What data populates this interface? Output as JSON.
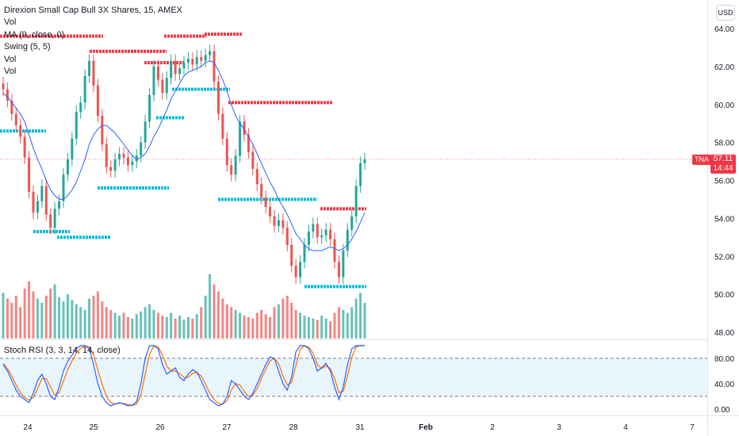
{
  "legend": {
    "title": "Direxion Small Cap Bull 3X Shares, 15, AMEX",
    "lines": [
      "Vol",
      "MA (9, close, 0)",
      "Swing (5, 5)",
      "Vol",
      "Vol"
    ]
  },
  "stoch_label": "Stoch RSI (3, 3, 14, 14, close)",
  "currency_button": "USD",
  "last_price": {
    "symbol": "TNA",
    "value": "57.11",
    "countdown": "14:44"
  },
  "colors": {
    "up": "#26a69a",
    "down": "#ef5350",
    "ma": "#2962ff",
    "swing_high": "#f23645",
    "swing_low": "#00bcd4",
    "stoch_k": "#2962ff",
    "stoch_d": "#ff6d00",
    "stoch_band": "#e3f2fd"
  },
  "chart_data": {
    "type": "candlestick",
    "title": "Direxion Small Cap Bull 3X Shares, 15, AMEX",
    "y_axis": {
      "range": [
        47.5,
        65.0
      ],
      "ticks": [
        "64.00",
        "62.00",
        "60.00",
        "58.00",
        "56.00",
        "54.00",
        "52.00",
        "50.00",
        "48.00"
      ]
    },
    "x_axis": {
      "ticks": [
        "24",
        "25",
        "26",
        "27",
        "28",
        "31",
        "Feb",
        "2",
        "3",
        "4",
        "7"
      ]
    },
    "price_close": [
      60.8,
      60.2,
      59.5,
      58.9,
      58.3,
      57.2,
      55.4,
      54.3,
      54.9,
      55.7,
      54.2,
      53.5,
      54.5,
      54.9,
      56.3,
      57.1,
      58.2,
      59.6,
      60.1,
      61.5,
      62.3,
      61.0,
      59.4,
      57.9,
      56.7,
      56.5,
      57.1,
      57.4,
      57.2,
      56.8,
      57.0,
      57.3,
      58.0,
      59.1,
      60.5,
      62.0,
      61.3,
      60.6,
      61.4,
      62.3,
      61.6,
      61.9,
      62.2,
      62.4,
      62.1,
      62.5,
      62.3,
      62.6,
      62.8,
      61.2,
      59.5,
      58.2,
      56.8,
      56.3,
      57.3,
      59.1,
      58.4,
      57.5,
      56.6,
      55.8,
      55.1,
      54.6,
      54.1,
      53.6,
      53.9,
      53.5,
      52.6,
      51.5,
      50.9,
      51.7,
      52.6,
      53.3,
      53.7,
      53.0,
      53.1,
      53.4,
      52.9,
      51.7,
      50.9,
      52.3,
      53.4,
      54.1,
      55.7,
      56.9,
      57.11
    ],
    "volume": [
      32,
      28,
      25,
      30,
      22,
      35,
      40,
      33,
      28,
      25,
      30,
      35,
      38,
      29,
      26,
      31,
      27,
      24,
      22,
      20,
      28,
      30,
      33,
      26,
      22,
      20,
      18,
      16,
      18,
      15,
      14,
      17,
      19,
      22,
      24,
      20,
      18,
      16,
      15,
      18,
      14,
      16,
      13,
      15,
      14,
      17,
      22,
      30,
      45,
      38,
      33,
      28,
      24,
      22,
      20,
      18,
      16,
      15,
      14,
      18,
      20,
      17,
      15,
      22,
      24,
      28,
      30,
      25,
      20,
      18,
      16,
      15,
      14,
      13,
      16,
      14,
      12,
      18,
      22,
      20,
      18,
      22,
      28,
      32,
      25
    ],
    "ma_9": [
      60.6,
      60.4,
      60.1,
      59.8,
      59.5,
      59.1,
      58.4,
      57.7,
      57.1,
      56.6,
      56.0,
      55.5,
      55.2,
      55.0,
      55.0,
      55.2,
      55.5,
      55.9,
      56.5,
      57.1,
      57.9,
      58.4,
      58.7,
      58.9,
      58.9,
      58.7,
      58.5,
      58.2,
      57.9,
      57.6,
      57.3,
      57.1,
      57.2,
      57.4,
      57.8,
      58.3,
      58.7,
      59.2,
      59.7,
      60.3,
      60.7,
      61.1,
      61.5,
      61.7,
      61.8,
      61.9,
      62.0,
      62.2,
      62.3,
      62.2,
      61.8,
      61.3,
      60.7,
      60.0,
      59.4,
      59.0,
      58.7,
      58.3,
      57.9,
      57.4,
      56.9,
      56.4,
      55.9,
      55.5,
      55.0,
      54.6,
      54.2,
      53.7,
      53.2,
      52.9,
      52.6,
      52.4,
      52.3,
      52.3,
      52.3,
      52.4,
      52.5,
      52.4,
      52.3,
      52.4,
      52.6,
      52.9,
      53.3,
      53.8,
      54.3
    ],
    "swing_high_levels": [
      {
        "price": 63.6,
        "from": "24",
        "to": "25"
      },
      {
        "price": 62.8,
        "from": "25",
        "to": "26"
      },
      {
        "price": 62.2,
        "from": "26",
        "to": "26"
      },
      {
        "price": 63.6,
        "from": "26",
        "to": "27"
      },
      {
        "price": 63.7,
        "from": "27",
        "to": "27"
      },
      {
        "price": 60.1,
        "from": "27",
        "to": "28"
      },
      {
        "price": 54.5,
        "from": "28",
        "to": "31"
      }
    ],
    "swing_low_levels": [
      {
        "price": 58.6,
        "from": "24",
        "to": "24"
      },
      {
        "price": 53.3,
        "from": "24",
        "to": "24"
      },
      {
        "price": 53.0,
        "from": "24",
        "to": "25"
      },
      {
        "price": 55.6,
        "from": "25",
        "to": "26"
      },
      {
        "price": 60.8,
        "from": "26",
        "to": "27"
      },
      {
        "price": 59.3,
        "from": "26",
        "to": "26"
      },
      {
        "price": 55.0,
        "from": "27",
        "to": "28"
      },
      {
        "price": 50.4,
        "from": "28",
        "to": "31"
      }
    ],
    "stoch_rsi": {
      "label": "Stoch RSI (3, 3, 14, 14, close)",
      "range": [
        0,
        100
      ],
      "ticks": [
        "80.00",
        "40.00",
        "0.00"
      ],
      "band": [
        20,
        80
      ],
      "k": [
        70,
        60,
        45,
        30,
        20,
        15,
        10,
        25,
        45,
        55,
        40,
        20,
        15,
        35,
        60,
        75,
        85,
        95,
        100,
        100,
        95,
        70,
        40,
        20,
        10,
        5,
        8,
        10,
        8,
        5,
        6,
        12,
        40,
        80,
        100,
        100,
        95,
        70,
        55,
        60,
        65,
        50,
        45,
        55,
        62,
        58,
        45,
        30,
        15,
        10,
        5,
        8,
        20,
        45,
        40,
        30,
        20,
        15,
        25,
        40,
        55,
        70,
        82,
        80,
        60,
        40,
        30,
        50,
        90,
        100,
        100,
        95,
        80,
        60,
        65,
        72,
        60,
        35,
        15,
        35,
        70,
        95,
        100,
        100,
        100
      ],
      "d": [
        72,
        64,
        52,
        38,
        26,
        18,
        14,
        18,
        32,
        48,
        48,
        35,
        22,
        26,
        44,
        62,
        76,
        88,
        96,
        100,
        98,
        85,
        62,
        38,
        20,
        10,
        8,
        9,
        9,
        7,
        6,
        8,
        22,
        55,
        86,
        100,
        98,
        85,
        68,
        60,
        60,
        56,
        50,
        50,
        56,
        58,
        52,
        40,
        25,
        15,
        9,
        8,
        13,
        30,
        40,
        38,
        28,
        20,
        22,
        32,
        48,
        62,
        76,
        80,
        72,
        52,
        38,
        42,
        68,
        94,
        100,
        98,
        88,
        70,
        64,
        68,
        64,
        48,
        26,
        28,
        52,
        82,
        98,
        100,
        100
      ]
    }
  }
}
